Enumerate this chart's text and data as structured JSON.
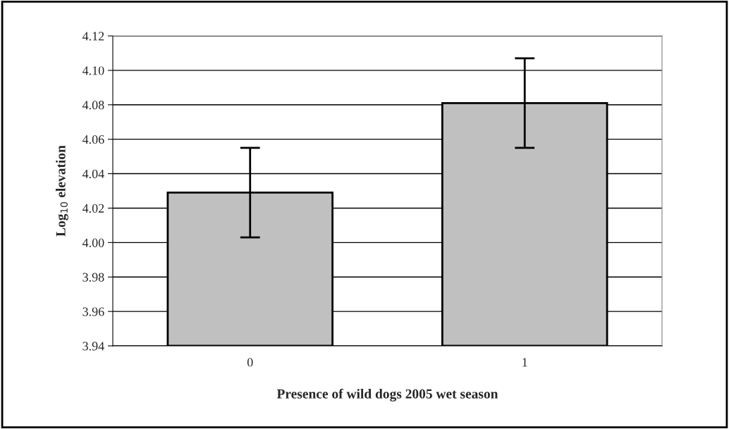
{
  "chart_data": {
    "type": "bar",
    "xlabel": "Presence of wild dogs 2005 wet season",
    "ylabel": "Log$_{10}$ elevation",
    "categories": [
      "0",
      "1"
    ],
    "values": [
      4.029,
      4.081
    ],
    "errors": [
      0.026,
      0.026
    ],
    "color": "#c0c0c0",
    "ylim": [
      3.94,
      4.12
    ],
    "yticks": [
      {
        "value": 3.94,
        "label": "3.94"
      },
      {
        "value": 3.96,
        "label": "3.96"
      },
      {
        "value": 3.98,
        "label": "3.98"
      },
      {
        "value": 4.0,
        "label": "4.00"
      },
      {
        "value": 4.02,
        "label": "4.02"
      },
      {
        "value": 4.04,
        "label": "4.04"
      },
      {
        "value": 4.06,
        "label": "4.06"
      },
      {
        "value": 4.08,
        "label": "4.08"
      },
      {
        "value": 4.1,
        "label": "4.10"
      },
      {
        "value": 4.12,
        "label": "4.12"
      }
    ],
    "grid": "y",
    "legend": false
  }
}
